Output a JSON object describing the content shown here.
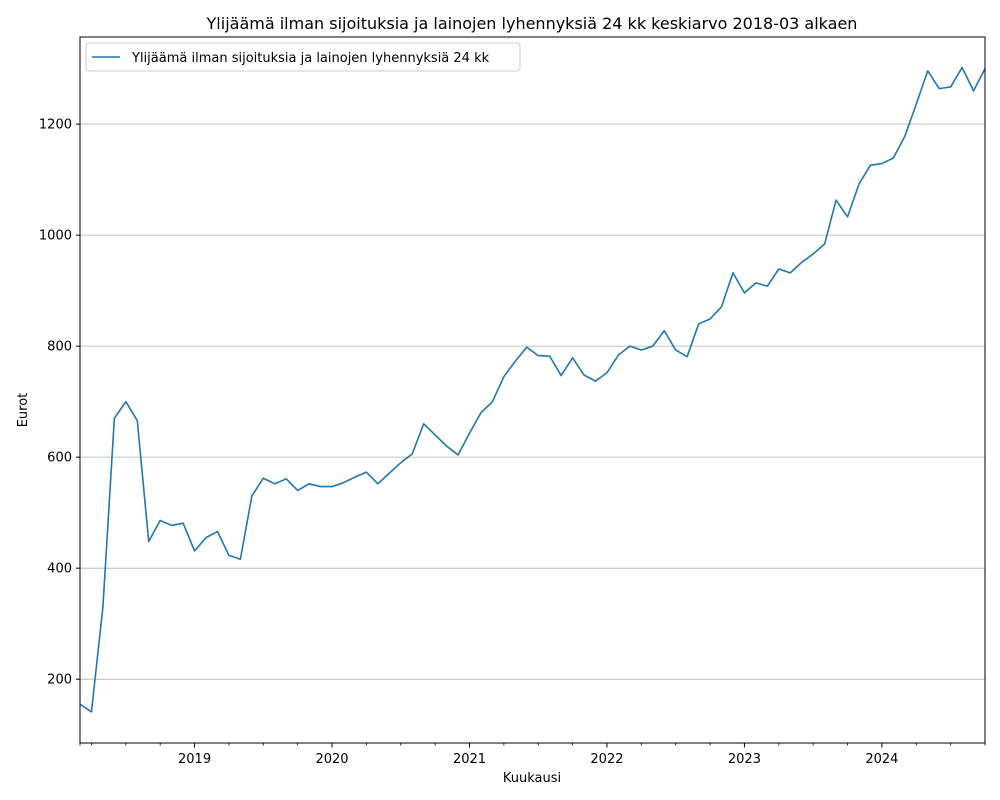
{
  "chart_data": {
    "type": "line",
    "title": "Ylijäämä ilman sijoituksia ja lainojen lyhennyksiä 24 kk keskiarvo 2018-03 alkaen",
    "xlabel": "Kuukausi",
    "ylabel": "Eurot",
    "ylim": [
      85,
      1357
    ],
    "xlim": [
      "2018-03",
      "2024-10"
    ],
    "grid": "y",
    "legend": "top-left",
    "yticks": [
      200,
      400,
      600,
      800,
      1000,
      1200
    ],
    "xticks": [
      {
        "label": "2019",
        "month": "2019-01"
      },
      {
        "label": "2020",
        "month": "2020-01"
      },
      {
        "label": "2021",
        "month": "2021-01"
      },
      {
        "label": "2022",
        "month": "2022-01"
      },
      {
        "label": "2023",
        "month": "2023-01"
      },
      {
        "label": "2024",
        "month": "2024-01"
      }
    ],
    "series": [
      {
        "name": "Ylijäämä ilman sijoituksia ja lainojen lyhennyksiä 24 kk",
        "color": "#1f77b4",
        "x": [
          "2018-03",
          "2018-04",
          "2018-05",
          "2018-06",
          "2018-07",
          "2018-08",
          "2018-09",
          "2018-10",
          "2018-11",
          "2018-12",
          "2019-01",
          "2019-02",
          "2019-03",
          "2019-04",
          "2019-05",
          "2019-06",
          "2019-07",
          "2019-08",
          "2019-09",
          "2019-10",
          "2019-11",
          "2019-12",
          "2020-01",
          "2020-02",
          "2020-03",
          "2020-04",
          "2020-05",
          "2020-06",
          "2020-07",
          "2020-08",
          "2020-09",
          "2020-10",
          "2020-11",
          "2020-12",
          "2021-01",
          "2021-02",
          "2021-03",
          "2021-04",
          "2021-05",
          "2021-06",
          "2021-07",
          "2021-08",
          "2021-09",
          "2021-10",
          "2021-11",
          "2021-12",
          "2022-01",
          "2022-02",
          "2022-03",
          "2022-04",
          "2022-05",
          "2022-06",
          "2022-07",
          "2022-08",
          "2022-09",
          "2022-10",
          "2022-11",
          "2022-12",
          "2023-01",
          "2023-02",
          "2023-03",
          "2023-04",
          "2023-05",
          "2023-06",
          "2023-07",
          "2023-08",
          "2023-09",
          "2023-10",
          "2023-11",
          "2023-12",
          "2024-01",
          "2024-02",
          "2024-03",
          "2024-04",
          "2024-05",
          "2024-06",
          "2024-07",
          "2024-08",
          "2024-09",
          "2024-10"
        ],
        "values": [
          155,
          141,
          330,
          670,
          700,
          666,
          448,
          486,
          477,
          481,
          431,
          455,
          466,
          423,
          416,
          530,
          562,
          552,
          561,
          540,
          552,
          547,
          547,
          554,
          564,
          573,
          552,
          571,
          590,
          606,
          660,
          640,
          620,
          604,
          643,
          680,
          700,
          745,
          773,
          798,
          783,
          782,
          747,
          779,
          748,
          737,
          752,
          784,
          800,
          793,
          800,
          828,
          793,
          781,
          840,
          849,
          871,
          932,
          896,
          914,
          908,
          939,
          932,
          951,
          966,
          984,
          1063,
          1033,
          1092,
          1126,
          1129,
          1139,
          1178,
          1236,
          1296,
          1264,
          1267,
          1302,
          1260,
          1300
        ]
      }
    ]
  }
}
